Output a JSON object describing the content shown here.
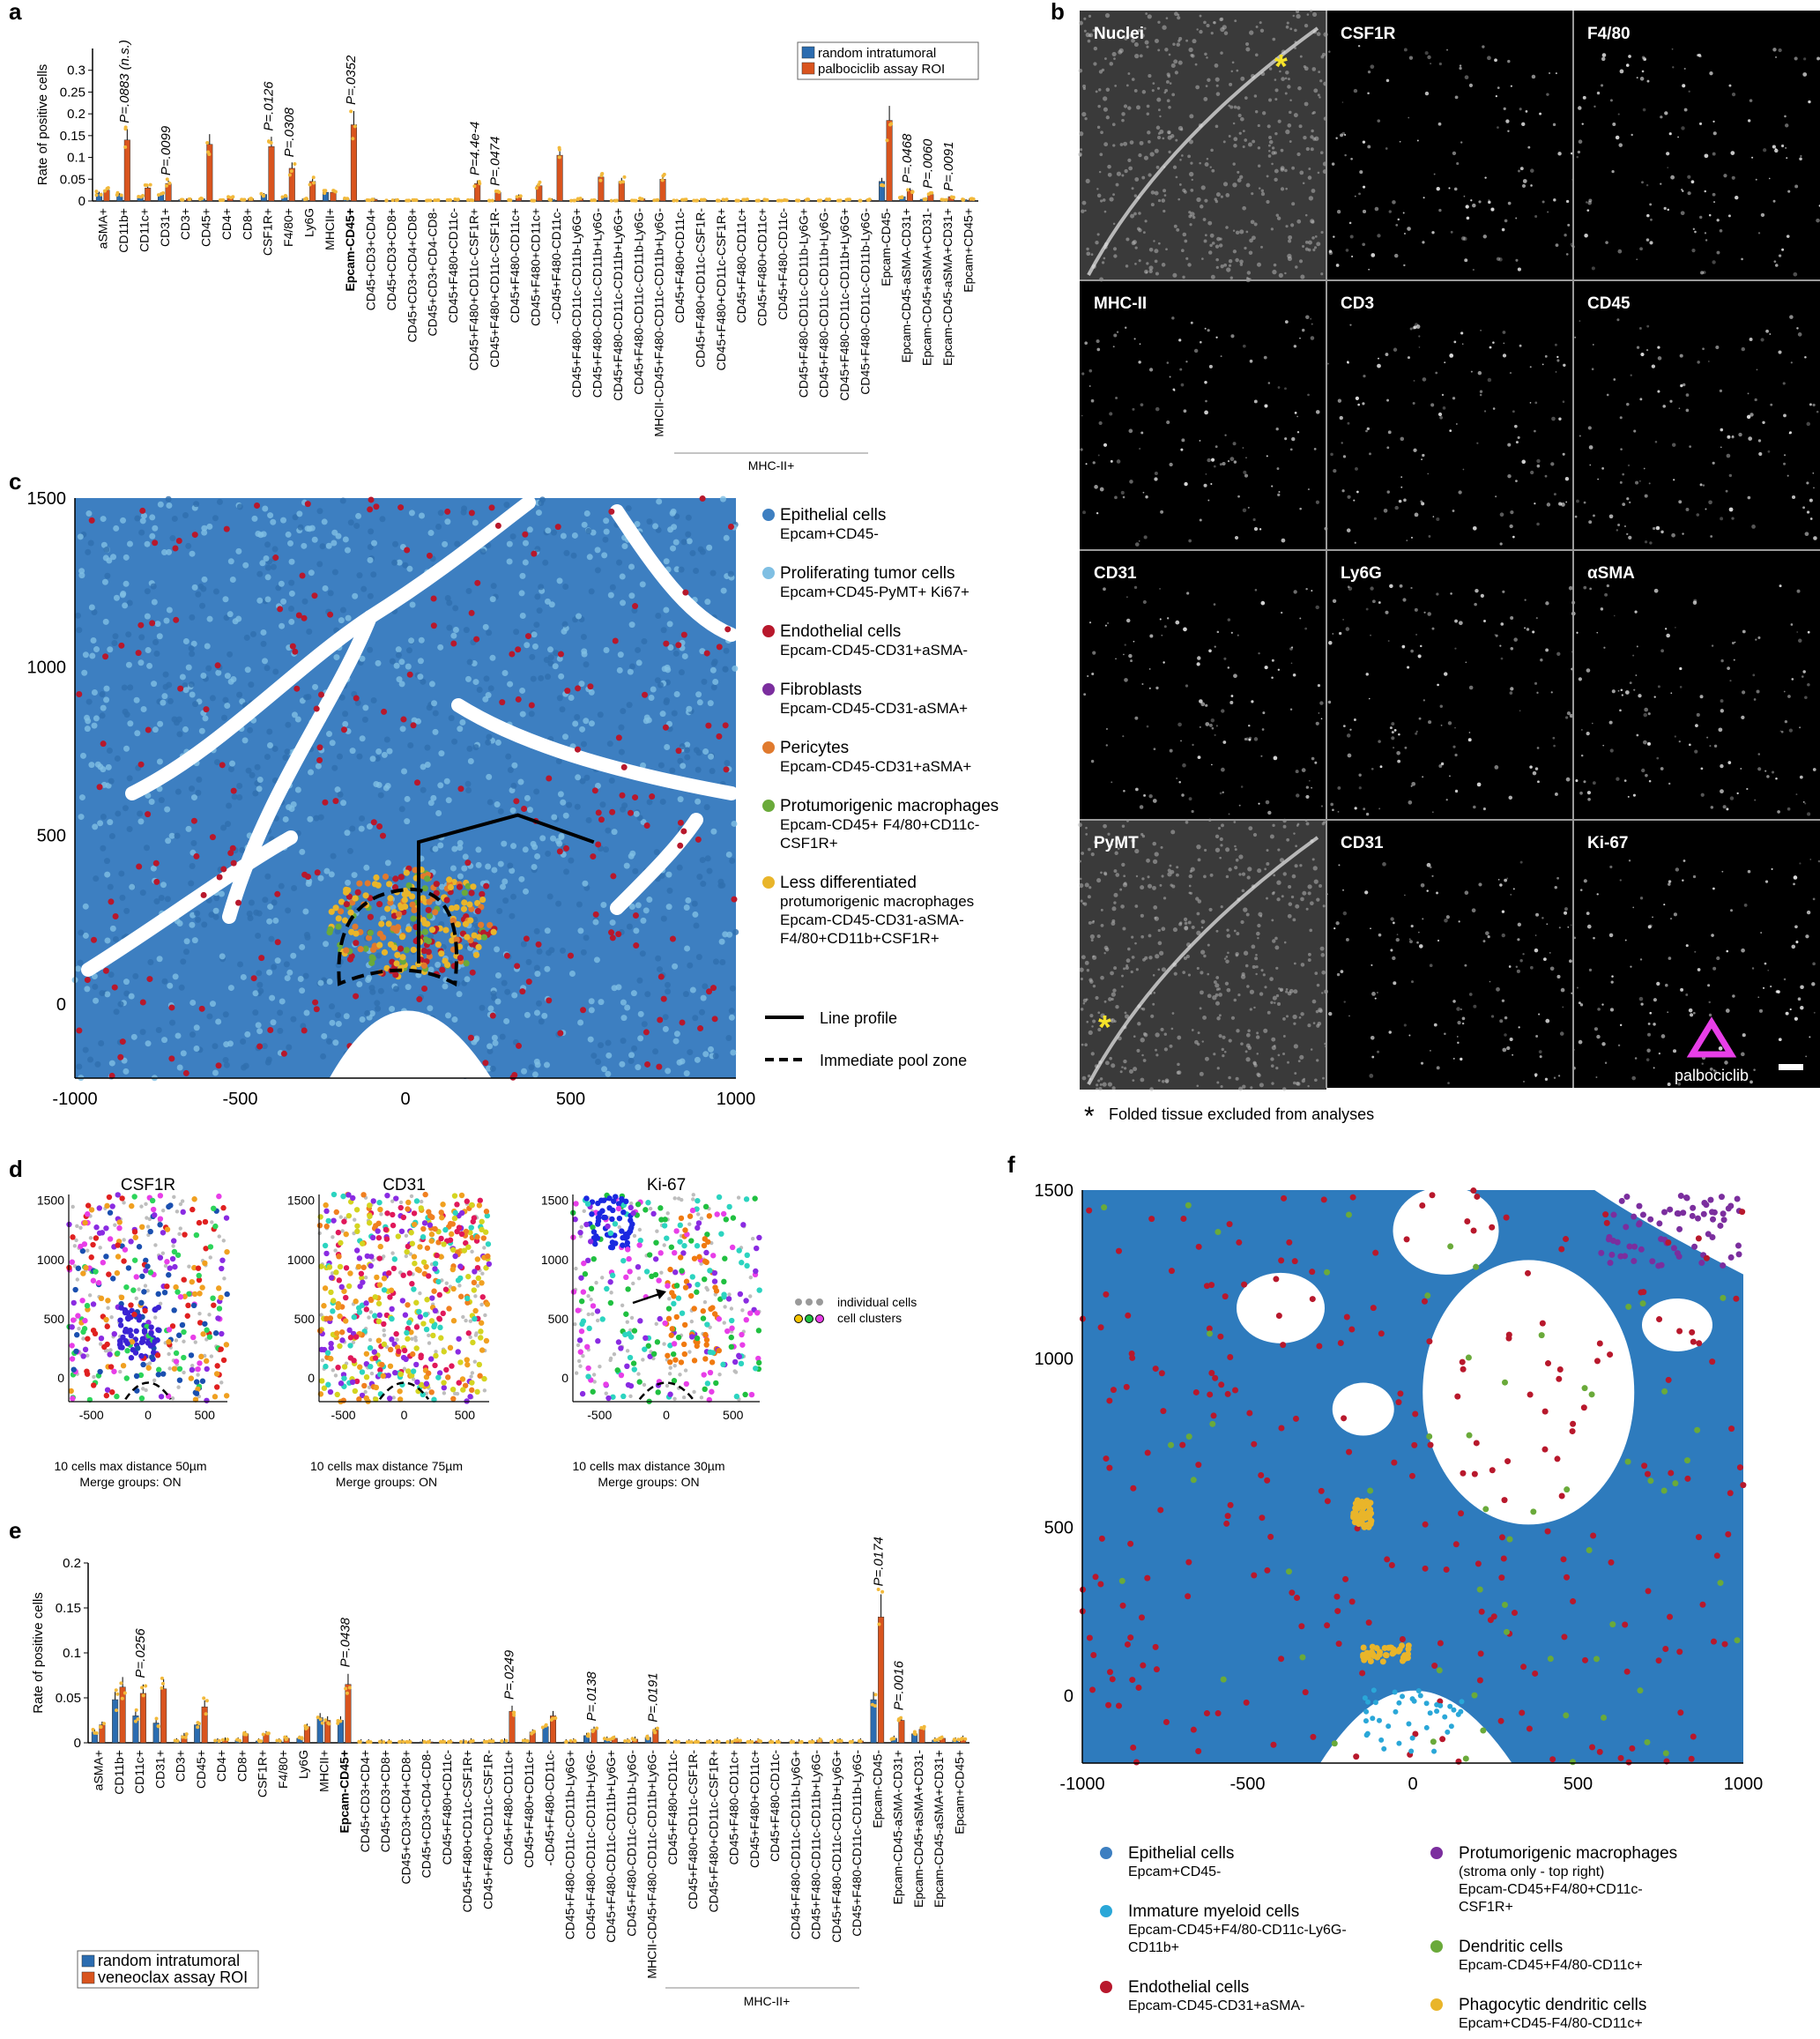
{
  "panel_letters": [
    "a",
    "b",
    "c",
    "d",
    "e",
    "f"
  ],
  "colors": {
    "random_bar": "#2b6cb0",
    "assay_bar": "#d9541e",
    "epithelial": "#3d7fc1",
    "proliferating": "#7fbfe3",
    "endothelial": "#b8182c",
    "fibroblasts": "#7b2e9e",
    "pericytes": "#e07a2e",
    "protumorigenic": "#6aaa3a",
    "less_diff": "#e9b52a",
    "immature_myeloid": "#2aa7d8",
    "dendritic": "#6aaa3a",
    "phagocytic_dc": "#e9b52a",
    "magenta_marker": "#e83ee8",
    "asterisk": "#f5e22a"
  },
  "chart_data": [
    {
      "id": "a",
      "type": "bar",
      "ylabel": "Rate of positive cells",
      "ylim": [
        0,
        0.35
      ],
      "yticks": [
        "0",
        "0.05",
        "0.1",
        "0.15",
        "0.2",
        "0.25",
        "0.3"
      ],
      "ytick_values": [
        0,
        0.05,
        0.1,
        0.15,
        0.2,
        0.25,
        0.3
      ],
      "legend": [
        "random intratumoral",
        "palbociclib assay ROI"
      ],
      "categories": [
        "aSMA+",
        "CD11b+",
        "CD11c+",
        "CD31+",
        "CD3+",
        "CD45+",
        "CD4+",
        "CD8+",
        "CSF1R+",
        "F4/80+",
        "Ly6G",
        "MHCII+",
        "Epcam-CD45+",
        "CD45+CD3+CD4+",
        "CD45+CD3+CD8+",
        "CD45+CD3+CD4+CD8+",
        "CD45+CD3+CD4-CD8-",
        "CD45+F480+CD11c-",
        "CD45+F480+CD11c-CSF1R+",
        "CD45+F480+CD11c-CSF1R-",
        "CD45+F480-CD11c+",
        "CD45+F480+CD11c+",
        "-CD45+F480-CD11c-",
        "CD45+F480-CD11c-CD11b-Ly6G+",
        "CD45+F480-CD11c-CD11b+Ly6G-",
        "CD45+F480-CD11c-CD11b+Ly6G+",
        "CD45+F480-CD11c-CD11b-Ly6G-",
        "MHCII-CD45+F480-CD11c-CD11b+Ly6G-",
        "CD45+F480+CD11c-",
        "CD45+F480+CD11c-CSF1R-",
        "CD45+F480+CD11c-CSF1R+",
        "CD45+F480-CD11c+",
        "CD45+F480+CD11c+",
        "CD45+F480-CD11c-",
        "CD45+F480-CD11c-CD11b-Ly6G+",
        "CD45+F480-CD11c-CD11b+Ly6G-",
        "CD45+F480-CD11c-CD11b+Ly6G+",
        "CD45+F480-CD11c-CD11b-Ly6G-",
        "Epcam-CD45-",
        "Epcam-CD45-aSMA-CD31+",
        "Epcam-CD45+aSMA+CD31-",
        "Epcam-CD45-aSMA+CD31+",
        "Epcam+CD45+"
      ],
      "bold_category": "Epcam-CD45+",
      "series": [
        {
          "name": "random intratumoral",
          "values": [
            0.018,
            0.015,
            0.01,
            0.015,
            0.003,
            0.005,
            0.002,
            0.003,
            0.015,
            0.01,
            0.005,
            0.02,
            0.005,
            0.002,
            0.001,
            0.001,
            0.001,
            0.002,
            0.002,
            0.001,
            0.002,
            0.001,
            0.003,
            0.001,
            0.002,
            0.001,
            0.001,
            0.002,
            0.001,
            0.001,
            0.001,
            0.001,
            0.001,
            0.001,
            0.001,
            0.001,
            0.001,
            0.001,
            0.045,
            0.01,
            0.004,
            0.003,
            0.003
          ]
        },
        {
          "name": "palbociclib assay ROI",
          "values": [
            0.025,
            0.14,
            0.03,
            0.04,
            0.005,
            0.13,
            0.008,
            0.005,
            0.125,
            0.075,
            0.045,
            0.02,
            0.175,
            0.004,
            0.002,
            0.002,
            0.002,
            0.004,
            0.04,
            0.02,
            0.012,
            0.035,
            0.105,
            0.005,
            0.055,
            0.045,
            0.005,
            0.05,
            0.003,
            0.003,
            0.003,
            0.003,
            0.003,
            0.002,
            0.003,
            0.003,
            0.003,
            0.003,
            0.185,
            0.025,
            0.015,
            0.01,
            0.005
          ]
        }
      ],
      "annotations": [
        {
          "category": "CD11b+",
          "text": "P=.0883 (n.s.)"
        },
        {
          "category": "CD31+",
          "text": "P=.0099"
        },
        {
          "category": "CSF1R+",
          "text": "P=.0126"
        },
        {
          "category": "F4/80+",
          "text": "P=.0308"
        },
        {
          "category": "Epcam-CD45+",
          "text": "P=.0352"
        },
        {
          "category": "CD45+F480+CD11c-CSF1R+",
          "text": "P=4.4e-4"
        },
        {
          "category": "CD45+F480+CD11c-CSF1R-",
          "text": "P=.0474"
        },
        {
          "category": "Epcam-CD45-aSMA-CD31+",
          "text": "P=.0468"
        },
        {
          "category": "Epcam-CD45+aSMA+CD31-",
          "text": "P=.0060"
        },
        {
          "category": "Epcam-CD45-aSMA+CD31+",
          "text": "P=.0091"
        }
      ],
      "bracket_label": "MHC-II+"
    },
    {
      "id": "c",
      "type": "scatter",
      "xlim": [
        -1000,
        1000
      ],
      "ylim": [
        -220,
        1500
      ],
      "xticks": [
        "-1000",
        "-500",
        "0",
        "500",
        "1000"
      ],
      "xtick_values": [
        -1000,
        -500,
        0,
        500,
        1000
      ],
      "yticks": [
        "0",
        "500",
        "1000",
        "1500"
      ],
      "ytick_values": [
        0,
        500,
        1000,
        1500
      ],
      "line_profile": [
        [
          40,
          120
        ],
        [
          40,
          480
        ],
        [
          340,
          560
        ],
        [
          570,
          480
        ]
      ],
      "pool_zone_center": [
        0,
        140
      ],
      "legend": [
        {
          "name": "Epithelial cells",
          "sub": [
            "Epcam+CD45-"
          ],
          "color": "epithelial"
        },
        {
          "name": "Proliferating tumor cells",
          "sub": [
            "Epcam+CD45-PyMT+ Ki67+"
          ],
          "color": "proliferating"
        },
        {
          "name": "Endothelial cells",
          "sub": [
            "Epcam-CD45-CD31+aSMA-"
          ],
          "color": "endothelial"
        },
        {
          "name": "Fibroblasts",
          "sub": [
            "Epcam-CD45-CD31-aSMA+"
          ],
          "color": "fibroblasts"
        },
        {
          "name": "Pericytes",
          "sub": [
            "Epcam-CD45-CD31+aSMA+"
          ],
          "color": "pericytes"
        },
        {
          "name": "Protumorigenic macrophages",
          "sub": [
            "Epcam-CD45+ F4/80+CD11c-",
            "CSF1R+"
          ],
          "color": "protumorigenic"
        },
        {
          "name": "Less differentiated",
          "sub": [
            "protumorigenic macrophages",
            "Epcam-CD45-CD31-aSMA-",
            "F4/80+CD11b+CSF1R+"
          ],
          "color": "less_diff"
        }
      ],
      "line_legend": [
        "Line profile",
        "Immediate pool zone"
      ]
    },
    {
      "id": "d",
      "type": "scatter",
      "panels": [
        {
          "title": "CSF1R",
          "caption": [
            "10 cells max distance 50µm",
            "Merge groups: ON"
          ]
        },
        {
          "title": "CD31",
          "caption": [
            "10 cells max distance 75µm",
            "Merge groups: ON"
          ]
        },
        {
          "title": "Ki-67",
          "caption": [
            "10 cells max distance 30µm",
            "Merge groups: ON"
          ]
        }
      ],
      "xticks": [
        "-500",
        "0",
        "500"
      ],
      "xtick_values": [
        -500,
        0,
        500
      ],
      "yticks": [
        "0",
        "500",
        "1000",
        "1500"
      ],
      "ytick_values": [
        0,
        500,
        1000,
        1500
      ],
      "legend": [
        "individual cells",
        "cell clusters"
      ]
    },
    {
      "id": "e",
      "type": "bar",
      "ylabel": "Rate of positive cells",
      "ylim": [
        0,
        0.2
      ],
      "yticks": [
        "0",
        "0.05",
        "0.1",
        "0.15",
        "0.2"
      ],
      "ytick_values": [
        0,
        0.05,
        0.1,
        0.15,
        0.2
      ],
      "legend": [
        "random intratumoral",
        "veneoclax assay ROI"
      ],
      "categories": [
        "aSMA+",
        "CD11b+",
        "CD11c+",
        "CD31+",
        "CD3+",
        "CD45+",
        "CD4+",
        "CD8+",
        "CSF1R+",
        "F4/80+",
        "Ly6G",
        "MHCII+",
        "Epcam-CD45+",
        "CD45+CD3+CD4+",
        "CD45+CD3+CD8+",
        "CD45+CD3+CD4+CD8+",
        "CD45+CD3+CD4-CD8-",
        "CD45+F480+CD11c-",
        "CD45+F480+CD11c-CSF1R+",
        "CD45+F480+CD11c-CSF1R-",
        "CD45+F480-CD11c+",
        "CD45+F480+CD11c+",
        "-CD45+F480-CD11c-",
        "CD45+F480-CD11c-CD11b-Ly6G+",
        "CD45+F480-CD11c-CD11b+Ly6G-",
        "CD45+F480-CD11c-CD11b+Ly6G+",
        "CD45+F480-CD11c-CD11b-Ly6G-",
        "MHCII-CD45+F480-CD11c-CD11b+Ly6G-",
        "CD45+F480+CD11c-",
        "CD45+F480+CD11c-CSF1R-",
        "CD45+F480+CD11c-CSF1R+",
        "CD45+F480-CD11c+",
        "CD45+F480+CD11c+",
        "CD45+F480-CD11c-",
        "CD45+F480-CD11c-CD11b-Ly6G+",
        "CD45+F480-CD11c-CD11b+Ly6G-",
        "CD45+F480-CD11c-CD11b+Ly6G+",
        "CD45+F480-CD11c-CD11b-Ly6G-",
        "Epcam-CD45-",
        "Epcam-CD45-aSMA-CD31+",
        "Epcam-CD45+aSMA+CD31-",
        "Epcam-CD45-aSMA+CD31+",
        "Epcam+CD45+"
      ],
      "bold_category": "Epcam-CD45+",
      "series": [
        {
          "name": "random intratumoral",
          "values": [
            0.012,
            0.048,
            0.03,
            0.022,
            0.002,
            0.02,
            0.002,
            0.003,
            0.002,
            0.002,
            0.005,
            0.028,
            0.025,
            0.001,
            0.001,
            0.001,
            0.001,
            0.001,
            0.001,
            0.001,
            0.002,
            0.002,
            0.018,
            0.001,
            0.008,
            0.004,
            0.002,
            0.006,
            0.001,
            0.001,
            0.001,
            0.001,
            0.001,
            0.001,
            0.001,
            0.001,
            0.001,
            0.001,
            0.048,
            0.005,
            0.01,
            0.003,
            0.003
          ]
        },
        {
          "name": "veneoclax assay ROI",
          "values": [
            0.02,
            0.062,
            0.055,
            0.06,
            0.008,
            0.04,
            0.003,
            0.01,
            0.01,
            0.005,
            0.018,
            0.025,
            0.065,
            0.001,
            0.001,
            0.001,
            0.001,
            0.001,
            0.002,
            0.002,
            0.035,
            0.012,
            0.03,
            0.002,
            0.015,
            0.005,
            0.004,
            0.014,
            0.001,
            0.001,
            0.001,
            0.003,
            0.002,
            0.001,
            0.001,
            0.003,
            0.002,
            0.002,
            0.14,
            0.025,
            0.015,
            0.005,
            0.005
          ]
        }
      ],
      "annotations": [
        {
          "category": "CD11c+",
          "text": "P=.0256"
        },
        {
          "category": "Epcam-CD45+",
          "text": "P=.0438"
        },
        {
          "category": "CD45+F480-CD11c+",
          "text": "P=.0249"
        },
        {
          "category": "CD45+F480-CD11c-CD11b+Ly6G-",
          "text": "P=.0138"
        },
        {
          "category": "MHCII-CD45+F480-CD11c-CD11b+Ly6G-",
          "text": "P=.0191"
        },
        {
          "category": "Epcam-CD45-",
          "text": "P=.0174"
        },
        {
          "category": "Epcam-CD45-aSMA-CD31+",
          "text": "P=.0016"
        }
      ],
      "bracket_label": "MHC-II+"
    },
    {
      "id": "f",
      "type": "scatter",
      "xlim": [
        -1000,
        1000
      ],
      "ylim": [
        -200,
        1500
      ],
      "xticks": [
        "-1000",
        "-500",
        "0",
        "500",
        "1000"
      ],
      "xtick_values": [
        -1000,
        -500,
        0,
        500,
        1000
      ],
      "yticks": [
        "0",
        "500",
        "1000",
        "1500"
      ],
      "ytick_values": [
        0,
        500,
        1000,
        1500
      ],
      "legend": [
        {
          "name": "Epithelial cells",
          "sub": [
            "Epcam+CD45-"
          ],
          "color": "epithelial"
        },
        {
          "name": "Immature myeloid cells",
          "sub": [
            "Epcam-CD45+F4/80-CD11c-Ly6G-",
            "CD11b+"
          ],
          "color": "immature_myeloid"
        },
        {
          "name": "Endothelial cells",
          "sub": [
            "Epcam-CD45-CD31+aSMA-"
          ],
          "color": "endothelial"
        },
        {
          "name": "Protumorigenic macrophages",
          "sub": [
            "(stroma only - top right)",
            "Epcam-CD45+F4/80+CD11c-",
            "CSF1R+"
          ],
          "color": "fibroblasts"
        },
        {
          "name": "Dendritic cells",
          "sub": [
            "Epcam-CD45+F4/80-CD11c+"
          ],
          "color": "dendritic"
        },
        {
          "name": "Phagocytic dendritic cells",
          "sub": [
            "Epcam+CD45-F4/80-CD11c+"
          ],
          "color": "phagocytic_dc"
        }
      ]
    }
  ],
  "panel_b": {
    "tiles": [
      "Nuclei",
      "CSF1R",
      "F4/80",
      "MHC-II",
      "CD3",
      "CD45",
      "CD31",
      "Ly6G",
      "αSMA",
      "PyMT",
      "CD31",
      "Ki-67"
    ],
    "marker_label": "palbociclib",
    "footnote_star": "*",
    "footnote": "Folded tissue excluded from analyses"
  }
}
